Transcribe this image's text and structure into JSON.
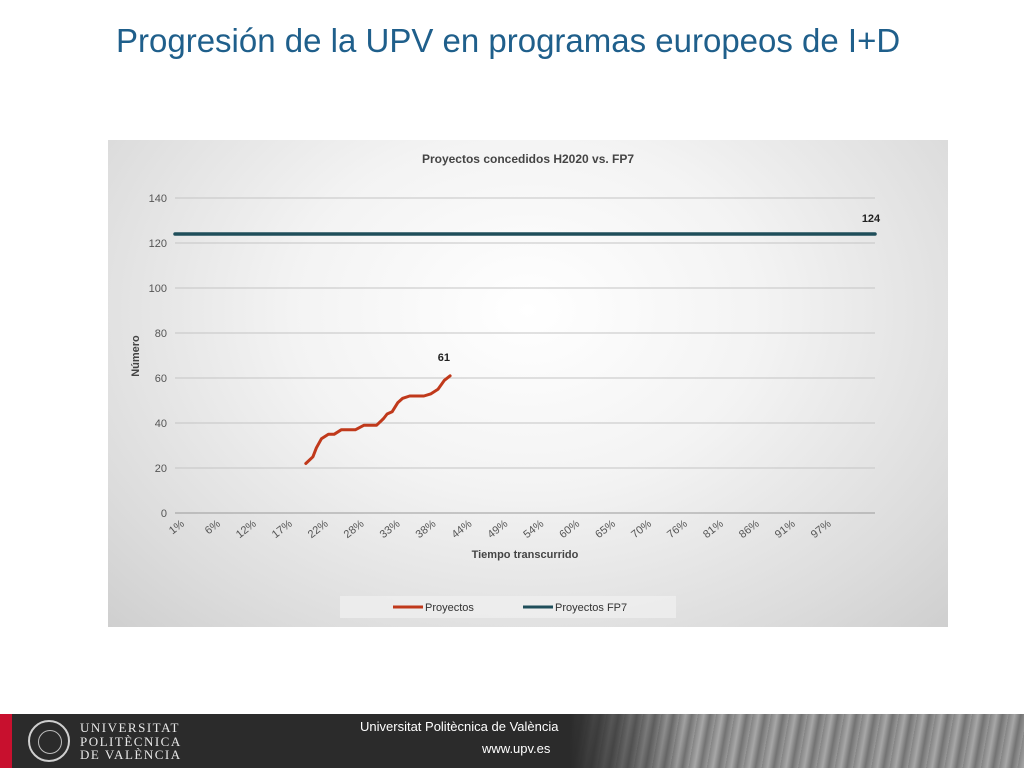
{
  "slide": {
    "title": "Progresión de la UPV en programas europeos de I+D"
  },
  "colors": {
    "title": "#1f5f8b",
    "series_proyectos": "#c0391b",
    "series_fp7": "#1f4e5a",
    "footer_bg": "#2b2b2b",
    "footer_accent": "#c8102e"
  },
  "chart_data": {
    "type": "line",
    "title": "Proyectos concedidos H2020 vs. FP7",
    "xlabel": "Tiempo transcurrido",
    "ylabel": "Número",
    "ylim": [
      0,
      140
    ],
    "yticks": [
      0,
      20,
      40,
      60,
      80,
      100,
      120,
      140
    ],
    "xlim": [
      1,
      100
    ],
    "xtick_labels": [
      "1%",
      "6%",
      "12%",
      "17%",
      "22%",
      "28%",
      "33%",
      "38%",
      "44%",
      "49%",
      "54%",
      "60%",
      "65%",
      "70%",
      "76%",
      "81%",
      "86%",
      "91%",
      "97%"
    ],
    "grid": true,
    "legend_position": "bottom",
    "series": [
      {
        "name": "Proyectos",
        "color": "#c0391b",
        "x": [
          19.5,
          20.5,
          21,
          21.7,
          22.7,
          23.5,
          24.5,
          25.5,
          26.5,
          27.7,
          28.2,
          29.5,
          30.5,
          31,
          31.7,
          32.5,
          33.2,
          34.2,
          35.2,
          36.2,
          37.2,
          38.2,
          39.1,
          39.9
        ],
        "values": [
          22,
          25,
          29,
          33,
          35,
          35,
          37,
          37,
          37,
          39,
          39,
          39,
          42,
          44,
          45,
          49,
          51,
          52,
          52,
          52,
          53,
          55,
          59,
          61
        ],
        "end_label": "61"
      },
      {
        "name": "Proyectos FP7",
        "color": "#1f4e5a",
        "x": [
          1,
          100
        ],
        "values": [
          124,
          124
        ],
        "end_label": "124"
      }
    ]
  },
  "footer": {
    "logo_line1": "UNIVERSITAT",
    "logo_line2": "POLITÈCNICA",
    "logo_line3": "DE VALÈNCIA",
    "university": "Universitat Politècnica de València",
    "website": "www.upv.es"
  }
}
